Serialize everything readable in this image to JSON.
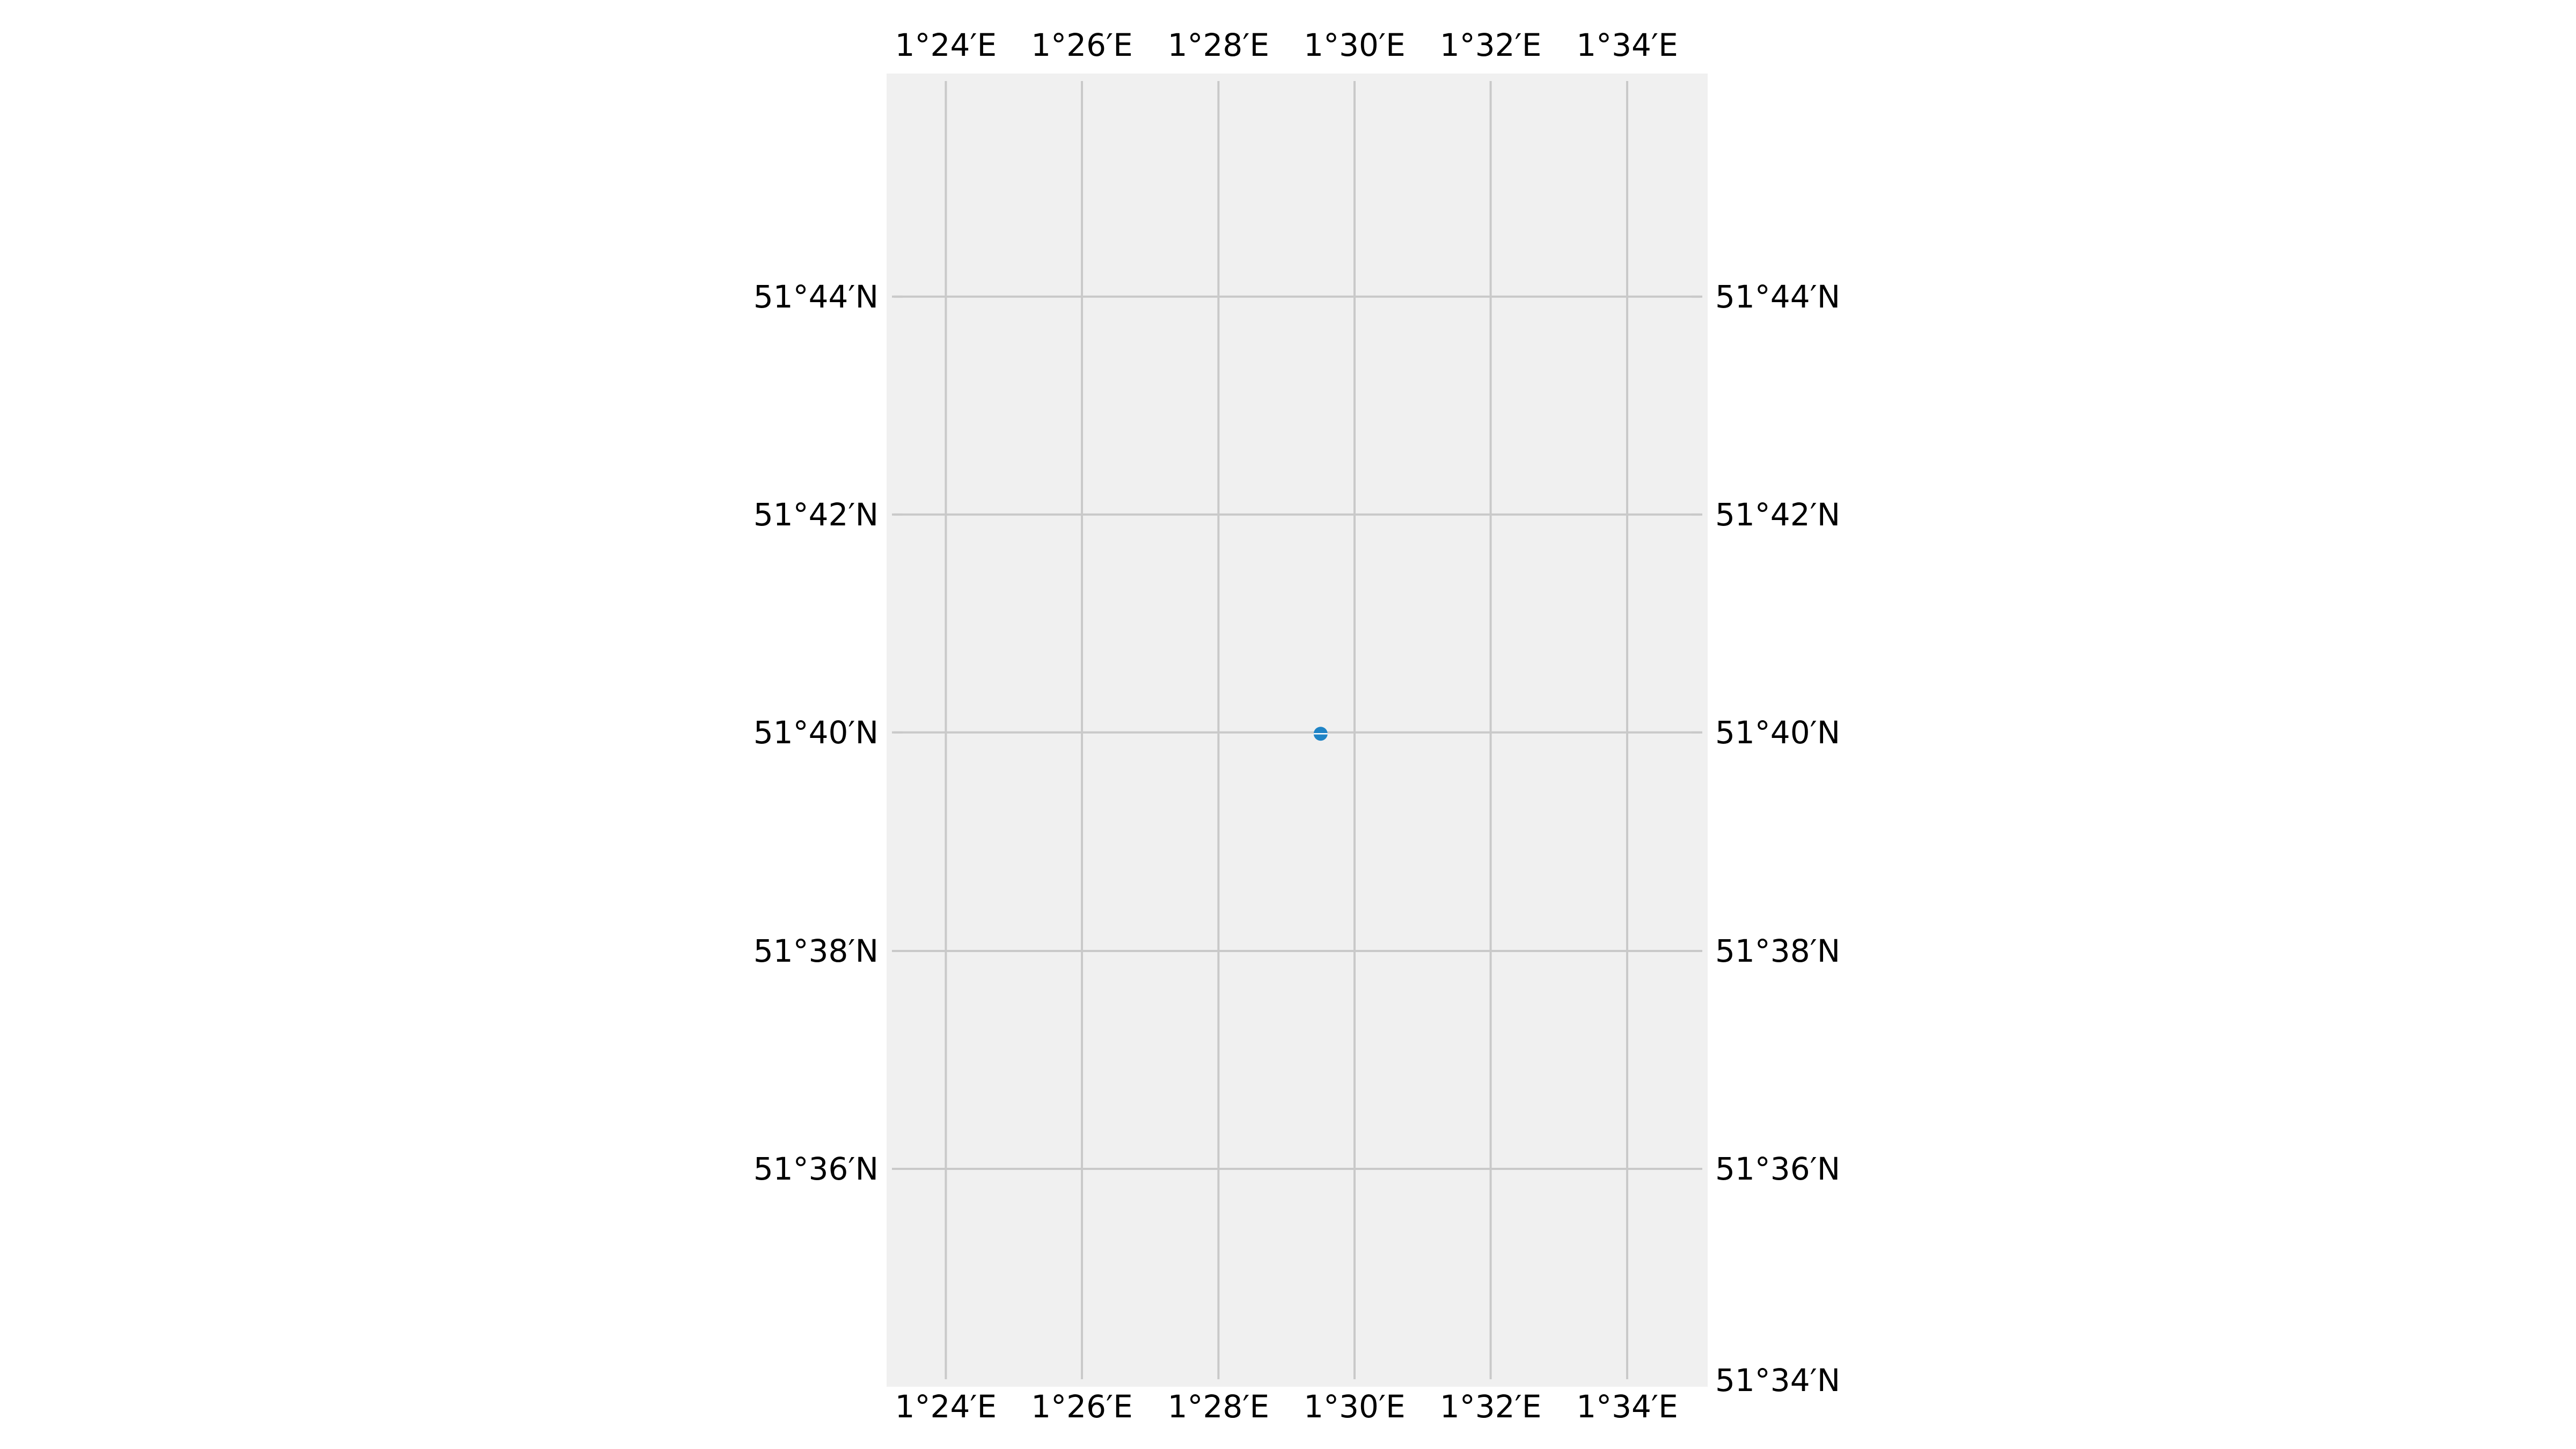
{
  "map": {
    "projection": "PlateCarree",
    "background_color": "#f0f0f0",
    "gridline_color": "#c9c9c9",
    "extent": {
      "lon_min_deg": 1.3855,
      "lon_max_deg": 1.5864,
      "lat_min_deg": 51.5667,
      "lat_max_deg": 51.7674
    },
    "longitude_ticks": [
      {
        "value_deg": 1.4,
        "label": "1°24′E"
      },
      {
        "value_deg": 1.4333,
        "label": "1°26′E"
      },
      {
        "value_deg": 1.4667,
        "label": "1°28′E"
      },
      {
        "value_deg": 1.5,
        "label": "1°30′E"
      },
      {
        "value_deg": 1.5333,
        "label": "1°32′E"
      },
      {
        "value_deg": 1.5667,
        "label": "1°34′E"
      }
    ],
    "latitude_ticks": [
      {
        "value_deg": 51.7333,
        "label": "51°44′N"
      },
      {
        "value_deg": 51.7,
        "label": "51°42′N"
      },
      {
        "value_deg": 51.6667,
        "label": "51°40′N"
      },
      {
        "value_deg": 51.6333,
        "label": "51°38′N"
      },
      {
        "value_deg": 51.6,
        "label": "51°36′N"
      }
    ],
    "extra_right_label": {
      "value_deg": 51.5667,
      "label": "51°34′N"
    },
    "points": [
      {
        "lon_deg": 1.4917,
        "lat_deg": 51.6665,
        "color": "#1f84c6",
        "icon": "location-dot"
      }
    ]
  }
}
